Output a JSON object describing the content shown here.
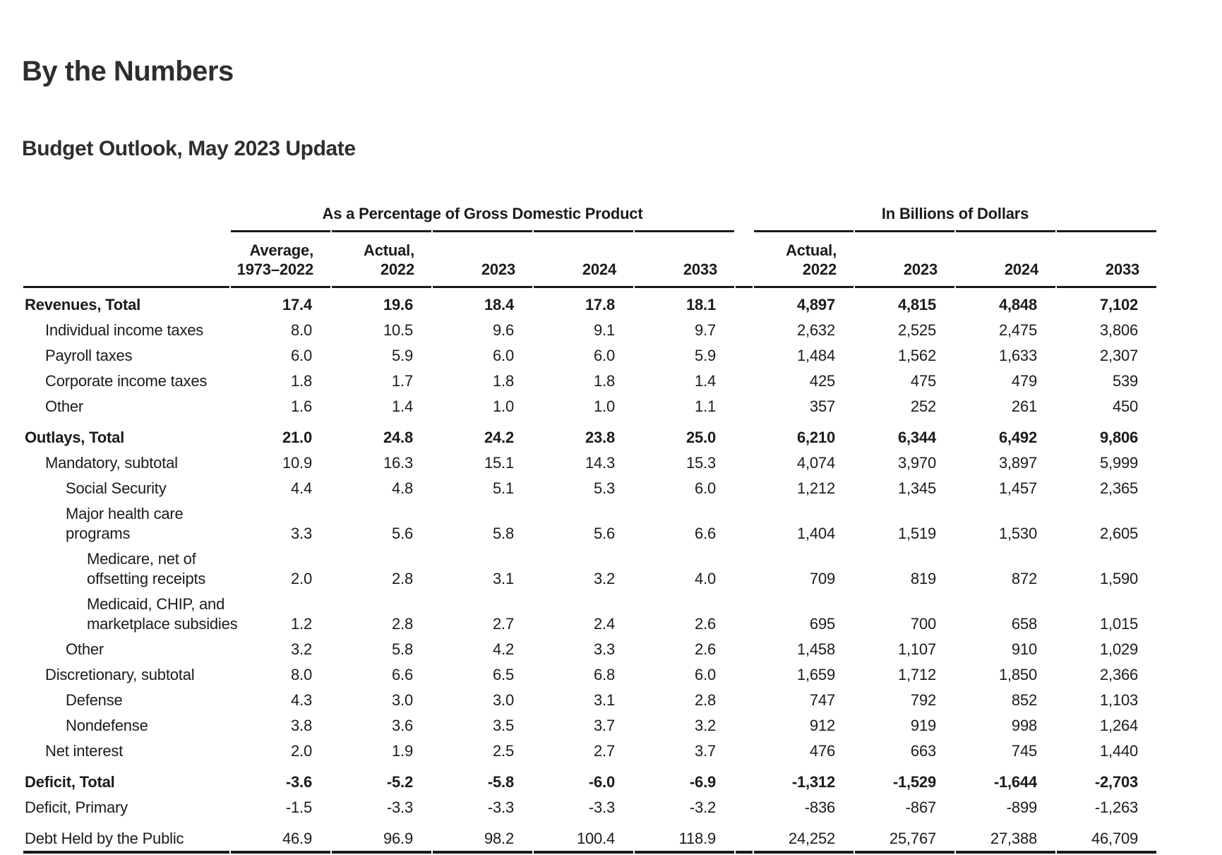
{
  "page": {
    "title": "By the Numbers",
    "subtitle": "Budget Outlook, May 2023 Update"
  },
  "table": {
    "group_headers": [
      {
        "label": "As a Percentage of Gross Domestic Product"
      },
      {
        "label": "In Billions of Dollars"
      }
    ],
    "pct_columns": [
      "Average,\n1973–2022",
      "Actual,\n2022",
      "2023",
      "2024",
      "2033"
    ],
    "usd_columns": [
      "Actual,\n2022",
      "2023",
      "2024",
      "2033"
    ],
    "rows": [
      {
        "label": "Revenues, Total",
        "indent": 0,
        "bold": true,
        "section_start": false,
        "pct": [
          "17.4",
          "19.6",
          "18.4",
          "17.8",
          "18.1"
        ],
        "usd": [
          "4,897",
          "4,815",
          "4,848",
          "7,102"
        ]
      },
      {
        "label": "Individual income taxes",
        "indent": 1,
        "bold": false,
        "section_start": false,
        "pct": [
          "8.0",
          "10.5",
          "9.6",
          "9.1",
          "9.7"
        ],
        "usd": [
          "2,632",
          "2,525",
          "2,475",
          "3,806"
        ]
      },
      {
        "label": "Payroll taxes",
        "indent": 1,
        "bold": false,
        "section_start": false,
        "pct": [
          "6.0",
          "5.9",
          "6.0",
          "6.0",
          "5.9"
        ],
        "usd": [
          "1,484",
          "1,562",
          "1,633",
          "2,307"
        ]
      },
      {
        "label": "Corporate income taxes",
        "indent": 1,
        "bold": false,
        "section_start": false,
        "pct": [
          "1.8",
          "1.7",
          "1.8",
          "1.8",
          "1.4"
        ],
        "usd": [
          "425",
          "475",
          "479",
          "539"
        ]
      },
      {
        "label": "Other",
        "indent": 1,
        "bold": false,
        "section_start": false,
        "pct": [
          "1.6",
          "1.4",
          "1.0",
          "1.0",
          "1.1"
        ],
        "usd": [
          "357",
          "252",
          "261",
          "450"
        ]
      },
      {
        "label": "Outlays, Total",
        "indent": 0,
        "bold": true,
        "section_start": true,
        "pct": [
          "21.0",
          "24.8",
          "24.2",
          "23.8",
          "25.0"
        ],
        "usd": [
          "6,210",
          "6,344",
          "6,492",
          "9,806"
        ]
      },
      {
        "label": "Mandatory, subtotal",
        "indent": 1,
        "bold": false,
        "section_start": false,
        "pct": [
          "10.9",
          "16.3",
          "15.1",
          "14.3",
          "15.3"
        ],
        "usd": [
          "4,074",
          "3,970",
          "3,897",
          "5,999"
        ]
      },
      {
        "label": "Social Security",
        "indent": 2,
        "bold": false,
        "section_start": false,
        "pct": [
          "4.4",
          "4.8",
          "5.1",
          "5.3",
          "6.0"
        ],
        "usd": [
          "1,212",
          "1,345",
          "1,457",
          "2,365"
        ]
      },
      {
        "label": "Major health care\nprograms",
        "indent": 2,
        "bold": false,
        "section_start": false,
        "pct": [
          "3.3",
          "5.6",
          "5.8",
          "5.6",
          "6.6"
        ],
        "usd": [
          "1,404",
          "1,519",
          "1,530",
          "2,605"
        ]
      },
      {
        "label": "Medicare, net of\noffsetting receipts",
        "indent": 3,
        "bold": false,
        "section_start": false,
        "pct": [
          "2.0",
          "2.8",
          "3.1",
          "3.2",
          "4.0"
        ],
        "usd": [
          "709",
          "819",
          "872",
          "1,590"
        ]
      },
      {
        "label": "Medicaid, CHIP, and\nmarketplace subsidies",
        "indent": 3,
        "bold": false,
        "section_start": false,
        "pct": [
          "1.2",
          "2.8",
          "2.7",
          "2.4",
          "2.6"
        ],
        "usd": [
          "695",
          "700",
          "658",
          "1,015"
        ]
      },
      {
        "label": "Other",
        "indent": 2,
        "bold": false,
        "section_start": false,
        "pct": [
          "3.2",
          "5.8",
          "4.2",
          "3.3",
          "2.6"
        ],
        "usd": [
          "1,458",
          "1,107",
          "910",
          "1,029"
        ]
      },
      {
        "label": "Discretionary, subtotal",
        "indent": 1,
        "bold": false,
        "section_start": false,
        "pct": [
          "8.0",
          "6.6",
          "6.5",
          "6.8",
          "6.0"
        ],
        "usd": [
          "1,659",
          "1,712",
          "1,850",
          "2,366"
        ]
      },
      {
        "label": "Defense",
        "indent": 2,
        "bold": false,
        "section_start": false,
        "pct": [
          "4.3",
          "3.0",
          "3.0",
          "3.1",
          "2.8"
        ],
        "usd": [
          "747",
          "792",
          "852",
          "1,103"
        ]
      },
      {
        "label": "Nondefense",
        "indent": 2,
        "bold": false,
        "section_start": false,
        "pct": [
          "3.8",
          "3.6",
          "3.5",
          "3.7",
          "3.2"
        ],
        "usd": [
          "912",
          "919",
          "998",
          "1,264"
        ]
      },
      {
        "label": "Net interest",
        "indent": 1,
        "bold": false,
        "section_start": false,
        "pct": [
          "2.0",
          "1.9",
          "2.5",
          "2.7",
          "3.7"
        ],
        "usd": [
          "476",
          "663",
          "745",
          "1,440"
        ]
      },
      {
        "label": "Deficit, Total",
        "indent": 0,
        "bold": true,
        "section_start": true,
        "pct": [
          "-3.6",
          "-5.2",
          "-5.8",
          "-6.0",
          "-6.9"
        ],
        "usd": [
          "-1,312",
          "-1,529",
          "-1,644",
          "-2,703"
        ]
      },
      {
        "label": "Deficit, Primary",
        "indent": 0,
        "bold": false,
        "section_start": false,
        "pct": [
          "-1.5",
          "-3.3",
          "-3.3",
          "-3.3",
          "-3.2"
        ],
        "usd": [
          "-836",
          "-867",
          "-899",
          "-1,263"
        ]
      },
      {
        "label": "Debt Held by the Public",
        "indent": 0,
        "bold": false,
        "section_start": true,
        "pct": [
          "46.9",
          "96.9",
          "98.2",
          "100.4",
          "118.9"
        ],
        "usd": [
          "24,252",
          "25,767",
          "27,388",
          "46,709"
        ]
      }
    ]
  }
}
